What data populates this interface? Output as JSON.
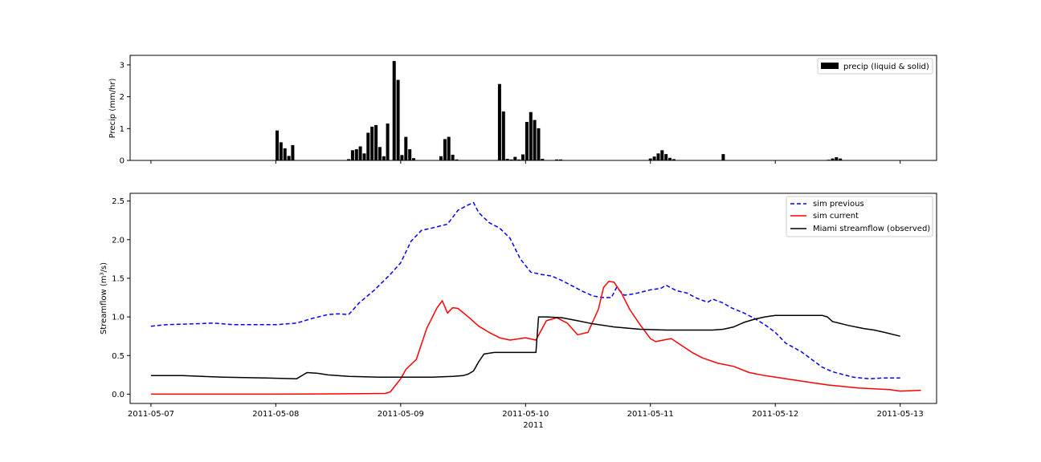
{
  "chart_data": [
    {
      "type": "bar",
      "ylabel": "Precip (mm/hr)",
      "ylim": [
        0,
        3.3
      ],
      "yticks": [
        0,
        1,
        2,
        3
      ],
      "xlim": [
        "2011-05-06T20:00",
        "2011-05-13T07:00"
      ],
      "legend": {
        "placement": "top-right",
        "entries": [
          "precip (liquid & solid)"
        ]
      },
      "series": [
        {
          "name": "precip (liquid & solid)",
          "color": "#000000",
          "points": [
            [
              "2011-05-08T00:15",
              0.94
            ],
            [
              "2011-05-08T01:00",
              0.57
            ],
            [
              "2011-05-08T01:45",
              0.38
            ],
            [
              "2011-05-08T02:30",
              0.14
            ],
            [
              "2011-05-08T03:15",
              0.48
            ],
            [
              "2011-05-08T14:00",
              0.04
            ],
            [
              "2011-05-08T14:45",
              0.32
            ],
            [
              "2011-05-08T15:30",
              0.35
            ],
            [
              "2011-05-08T16:15",
              0.44
            ],
            [
              "2011-05-08T17:00",
              0.22
            ],
            [
              "2011-05-08T17:45",
              0.87
            ],
            [
              "2011-05-08T18:30",
              1.06
            ],
            [
              "2011-05-08T19:15",
              1.11
            ],
            [
              "2011-05-08T20:00",
              0.42
            ],
            [
              "2011-05-08T20:45",
              0.13
            ],
            [
              "2011-05-08T21:30",
              1.16
            ],
            [
              "2011-05-08T22:45",
              3.12
            ],
            [
              "2011-05-08T23:30",
              2.53
            ],
            [
              "2011-05-09T00:15",
              0.17
            ],
            [
              "2011-05-09T01:00",
              0.74
            ],
            [
              "2011-05-09T01:45",
              0.35
            ],
            [
              "2011-05-09T02:30",
              0.07
            ],
            [
              "2011-05-09T07:45",
              0.13
            ],
            [
              "2011-05-09T08:30",
              0.67
            ],
            [
              "2011-05-09T09:15",
              0.74
            ],
            [
              "2011-05-09T10:00",
              0.18
            ],
            [
              "2011-05-09T10:45",
              0.03
            ],
            [
              "2011-05-09T19:00",
              2.4
            ],
            [
              "2011-05-09T19:45",
              1.54
            ],
            [
              "2011-05-09T20:30",
              0.05
            ],
            [
              "2011-05-09T21:15",
              0.03
            ],
            [
              "2011-05-09T22:00",
              0.11
            ],
            [
              "2011-05-09T22:45",
              0.03
            ],
            [
              "2011-05-09T23:30",
              0.19
            ],
            [
              "2011-05-10T00:15",
              1.21
            ],
            [
              "2011-05-10T01:00",
              1.52
            ],
            [
              "2011-05-10T01:45",
              1.27
            ],
            [
              "2011-05-10T02:30",
              1.01
            ],
            [
              "2011-05-10T03:15",
              0.05
            ],
            [
              "2011-05-10T06:00",
              0.03
            ],
            [
              "2011-05-10T06:45",
              0.03
            ],
            [
              "2011-05-11T00:00",
              0.06
            ],
            [
              "2011-05-11T00:45",
              0.12
            ],
            [
              "2011-05-11T01:30",
              0.22
            ],
            [
              "2011-05-11T02:15",
              0.32
            ],
            [
              "2011-05-11T03:00",
              0.2
            ],
            [
              "2011-05-11T03:45",
              0.08
            ],
            [
              "2011-05-11T04:30",
              0.04
            ],
            [
              "2011-05-11T14:00",
              0.2
            ],
            [
              "2011-05-12T10:15",
              0.02
            ],
            [
              "2011-05-12T11:00",
              0.06
            ],
            [
              "2011-05-12T11:45",
              0.1
            ],
            [
              "2011-05-12T12:30",
              0.06
            ]
          ]
        }
      ]
    },
    {
      "type": "line",
      "ylabel": "Streamflow (m³/s)",
      "xlabel": "2011",
      "ylim": [
        -0.12,
        2.6
      ],
      "yticks": [
        0.0,
        0.5,
        1.0,
        1.5,
        2.0,
        2.5
      ],
      "ytick_labels": [
        "0.0",
        "0.5",
        "1.0",
        "1.5",
        "2.0",
        "2.5"
      ],
      "xlim": [
        "2011-05-06T20:00",
        "2011-05-13T07:00"
      ],
      "xticks": [
        "2011-05-07",
        "2011-05-08",
        "2011-05-09",
        "2011-05-10",
        "2011-05-11",
        "2011-05-12",
        "2011-05-13"
      ],
      "legend": {
        "placement": "top-right",
        "entries": [
          "sim previous",
          "sim current",
          "Miami streamflow (observed)"
        ]
      },
      "series": [
        {
          "name": "sim previous",
          "color": "#0000ff",
          "style": "dashed",
          "points": [
            [
              "2011-05-07T00:00",
              0.88
            ],
            [
              "2011-05-07T03:00",
              0.9
            ],
            [
              "2011-05-07T08:00",
              0.91
            ],
            [
              "2011-05-07T12:00",
              0.92
            ],
            [
              "2011-05-07T16:00",
              0.9
            ],
            [
              "2011-05-08T00:00",
              0.9
            ],
            [
              "2011-05-08T04:00",
              0.92
            ],
            [
              "2011-05-08T07:00",
              0.98
            ],
            [
              "2011-05-08T10:00",
              1.03
            ],
            [
              "2011-05-08T12:00",
              1.04
            ],
            [
              "2011-05-08T14:00",
              1.03
            ],
            [
              "2011-05-08T16:00",
              1.18
            ],
            [
              "2011-05-08T19:00",
              1.35
            ],
            [
              "2011-05-08T22:00",
              1.55
            ],
            [
              "2011-05-09T00:00",
              1.7
            ],
            [
              "2011-05-09T02:00",
              1.98
            ],
            [
              "2011-05-09T04:00",
              2.12
            ],
            [
              "2011-05-09T06:00",
              2.15
            ],
            [
              "2011-05-09T09:00",
              2.2
            ],
            [
              "2011-05-09T11:00",
              2.38
            ],
            [
              "2011-05-09T13:00",
              2.45
            ],
            [
              "2011-05-09T14:00",
              2.48
            ],
            [
              "2011-05-09T15:00",
              2.35
            ],
            [
              "2011-05-09T17:00",
              2.22
            ],
            [
              "2011-05-09T19:00",
              2.15
            ],
            [
              "2011-05-09T21:00",
              2.02
            ],
            [
              "2011-05-09T23:00",
              1.75
            ],
            [
              "2011-05-10T01:00",
              1.58
            ],
            [
              "2011-05-10T03:00",
              1.55
            ],
            [
              "2011-05-10T05:00",
              1.53
            ],
            [
              "2011-05-10T07:00",
              1.47
            ],
            [
              "2011-05-10T09:00",
              1.4
            ],
            [
              "2011-05-10T11:00",
              1.33
            ],
            [
              "2011-05-10T13:00",
              1.27
            ],
            [
              "2011-05-10T15:00",
              1.25
            ],
            [
              "2011-05-10T16:30",
              1.25
            ],
            [
              "2011-05-10T17:30",
              1.38
            ],
            [
              "2011-05-10T19:00",
              1.28
            ],
            [
              "2011-05-10T21:00",
              1.3
            ],
            [
              "2011-05-11T00:00",
              1.35
            ],
            [
              "2011-05-11T02:00",
              1.37
            ],
            [
              "2011-05-11T03:00",
              1.41
            ],
            [
              "2011-05-11T05:00",
              1.34
            ],
            [
              "2011-05-11T07:00",
              1.31
            ],
            [
              "2011-05-11T09:00",
              1.24
            ],
            [
              "2011-05-11T11:00",
              1.19
            ],
            [
              "2011-05-11T12:00",
              1.23
            ],
            [
              "2011-05-11T14:00",
              1.18
            ],
            [
              "2011-05-11T15:30",
              1.12
            ],
            [
              "2011-05-11T18:00",
              1.05
            ],
            [
              "2011-05-11T20:00",
              0.98
            ],
            [
              "2011-05-11T22:00",
              0.9
            ],
            [
              "2011-05-12T00:00",
              0.8
            ],
            [
              "2011-05-12T02:00",
              0.66
            ],
            [
              "2011-05-12T05:00",
              0.55
            ],
            [
              "2011-05-12T07:00",
              0.45
            ],
            [
              "2011-05-12T09:00",
              0.35
            ],
            [
              "2011-05-12T11:00",
              0.29
            ],
            [
              "2011-05-12T15:00",
              0.22
            ],
            [
              "2011-05-12T18:00",
              0.2
            ],
            [
              "2011-05-12T21:00",
              0.21
            ],
            [
              "2011-05-13T00:00",
              0.21
            ]
          ]
        },
        {
          "name": "sim current",
          "color": "#ff0000",
          "style": "solid",
          "points": [
            [
              "2011-05-07T00:00",
              0.0
            ],
            [
              "2011-05-08T00:00",
              0.0
            ],
            [
              "2011-05-08T12:00",
              0.005
            ],
            [
              "2011-05-08T21:00",
              0.01
            ],
            [
              "2011-05-08T22:00",
              0.03
            ],
            [
              "2011-05-09T00:00",
              0.2
            ],
            [
              "2011-05-09T01:00",
              0.32
            ],
            [
              "2011-05-09T03:00",
              0.45
            ],
            [
              "2011-05-09T05:00",
              0.85
            ],
            [
              "2011-05-09T07:00",
              1.12
            ],
            [
              "2011-05-09T08:00",
              1.21
            ],
            [
              "2011-05-09T09:00",
              1.05
            ],
            [
              "2011-05-09T10:00",
              1.12
            ],
            [
              "2011-05-09T11:00",
              1.11
            ],
            [
              "2011-05-09T13:00",
              1.0
            ],
            [
              "2011-05-09T15:00",
              0.88
            ],
            [
              "2011-05-09T17:00",
              0.8
            ],
            [
              "2011-05-09T19:00",
              0.73
            ],
            [
              "2011-05-09T21:00",
              0.7
            ],
            [
              "2011-05-10T00:00",
              0.73
            ],
            [
              "2011-05-10T02:00",
              0.7
            ],
            [
              "2011-05-10T04:00",
              0.95
            ],
            [
              "2011-05-10T06:00",
              0.99
            ],
            [
              "2011-05-10T08:00",
              0.92
            ],
            [
              "2011-05-10T10:00",
              0.77
            ],
            [
              "2011-05-10T12:00",
              0.8
            ],
            [
              "2011-05-10T14:00",
              1.1
            ],
            [
              "2011-05-10T15:00",
              1.38
            ],
            [
              "2011-05-10T16:00",
              1.46
            ],
            [
              "2011-05-10T17:00",
              1.45
            ],
            [
              "2011-05-10T18:30",
              1.3
            ],
            [
              "2011-05-10T20:00",
              1.1
            ],
            [
              "2011-05-10T22:00",
              0.9
            ],
            [
              "2011-05-11T00:00",
              0.72
            ],
            [
              "2011-05-11T01:00",
              0.68
            ],
            [
              "2011-05-11T04:00",
              0.72
            ],
            [
              "2011-05-11T06:00",
              0.63
            ],
            [
              "2011-05-11T08:00",
              0.54
            ],
            [
              "2011-05-11T10:00",
              0.47
            ],
            [
              "2011-05-11T13:00",
              0.4
            ],
            [
              "2011-05-11T16:00",
              0.36
            ],
            [
              "2011-05-11T19:00",
              0.28
            ],
            [
              "2011-05-11T22:00",
              0.24
            ],
            [
              "2011-05-12T04:00",
              0.18
            ],
            [
              "2011-05-12T10:00",
              0.12
            ],
            [
              "2011-05-12T16:00",
              0.08
            ],
            [
              "2011-05-12T22:00",
              0.06
            ],
            [
              "2011-05-13T04:00",
              0.05
            ],
            [
              "2011-05-13T00:00",
              0.04
            ]
          ]
        },
        {
          "name": "Miami streamflow (observed)",
          "color": "#000000",
          "style": "solid",
          "points": [
            [
              "2011-05-07T00:00",
              0.24
            ],
            [
              "2011-05-07T06:00",
              0.24
            ],
            [
              "2011-05-07T14:00",
              0.22
            ],
            [
              "2011-05-07T22:00",
              0.21
            ],
            [
              "2011-05-08T04:00",
              0.2
            ],
            [
              "2011-05-08T06:00",
              0.28
            ],
            [
              "2011-05-08T08:00",
              0.27
            ],
            [
              "2011-05-08T10:00",
              0.25
            ],
            [
              "2011-05-08T14:00",
              0.23
            ],
            [
              "2011-05-08T20:00",
              0.22
            ],
            [
              "2011-05-09T02:00",
              0.22
            ],
            [
              "2011-05-09T06:00",
              0.22
            ],
            [
              "2011-05-09T10:00",
              0.23
            ],
            [
              "2011-05-09T12:00",
              0.24
            ],
            [
              "2011-05-09T13:00",
              0.26
            ],
            [
              "2011-05-09T14:00",
              0.3
            ],
            [
              "2011-05-09T15:00",
              0.42
            ],
            [
              "2011-05-09T16:00",
              0.52
            ],
            [
              "2011-05-09T18:00",
              0.54
            ],
            [
              "2011-05-09T21:00",
              0.54
            ],
            [
              "2011-05-10T00:00",
              0.54
            ],
            [
              "2011-05-10T02:00",
              0.54
            ],
            [
              "2011-05-10T02:30",
              1.0
            ],
            [
              "2011-05-10T04:00",
              1.0
            ],
            [
              "2011-05-10T07:00",
              0.99
            ],
            [
              "2011-05-10T10:00",
              0.95
            ],
            [
              "2011-05-10T13:00",
              0.91
            ],
            [
              "2011-05-10T17:00",
              0.87
            ],
            [
              "2011-05-10T22:00",
              0.84
            ],
            [
              "2011-05-11T03:00",
              0.83
            ],
            [
              "2011-05-11T08:00",
              0.83
            ],
            [
              "2011-05-11T12:00",
              0.83
            ],
            [
              "2011-05-11T14:00",
              0.84
            ],
            [
              "2011-05-11T16:00",
              0.87
            ],
            [
              "2011-05-11T18:00",
              0.93
            ],
            [
              "2011-05-11T20:00",
              0.97
            ],
            [
              "2011-05-11T22:00",
              1.0
            ],
            [
              "2011-05-12T00:00",
              1.02
            ],
            [
              "2011-05-12T06:00",
              1.02
            ],
            [
              "2011-05-12T09:00",
              1.02
            ],
            [
              "2011-05-12T10:00",
              1.0
            ],
            [
              "2011-05-12T11:00",
              0.94
            ],
            [
              "2011-05-12T14:00",
              0.89
            ],
            [
              "2011-05-12T17:00",
              0.85
            ],
            [
              "2011-05-12T19:00",
              0.83
            ],
            [
              "2011-05-12T21:00",
              0.8
            ],
            [
              "2011-05-13T00:00",
              0.75
            ]
          ]
        }
      ]
    }
  ]
}
